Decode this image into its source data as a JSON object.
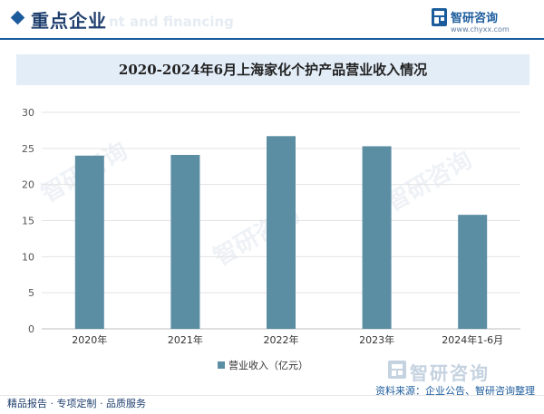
{
  "header": {
    "section_title": "重点企业",
    "ghost_text": "nt and financing",
    "brand_name": "智研咨询",
    "brand_url": "www.chyxx.com"
  },
  "chart_data": {
    "type": "bar",
    "title": "2020-2024年6月上海家化个护产品营业收入情况",
    "categories": [
      "2020年",
      "2021年",
      "2022年",
      "2023年",
      "2024年1-6月"
    ],
    "series": [
      {
        "name": "营业收入（亿元）",
        "values": [
          24.0,
          24.1,
          26.7,
          25.3,
          15.8
        ]
      }
    ],
    "ylim": [
      0,
      30
    ],
    "yticks": [
      0,
      5,
      10,
      15,
      20,
      25,
      30
    ],
    "grid": true,
    "legend_position": "bottom",
    "colors": {
      "bar": "#5b8da3",
      "grid": "#e3e3e3",
      "axis": "#bfbfbf"
    }
  },
  "watermark": {
    "text": "智研咨询"
  },
  "source": "资料来源：企业公告、智研咨询整理",
  "footer": {
    "left": "精品报告 · 专项定制 · 品质服务"
  },
  "colors": {
    "brand": "#1c5c9c",
    "title_band": "#e3edf8"
  }
}
